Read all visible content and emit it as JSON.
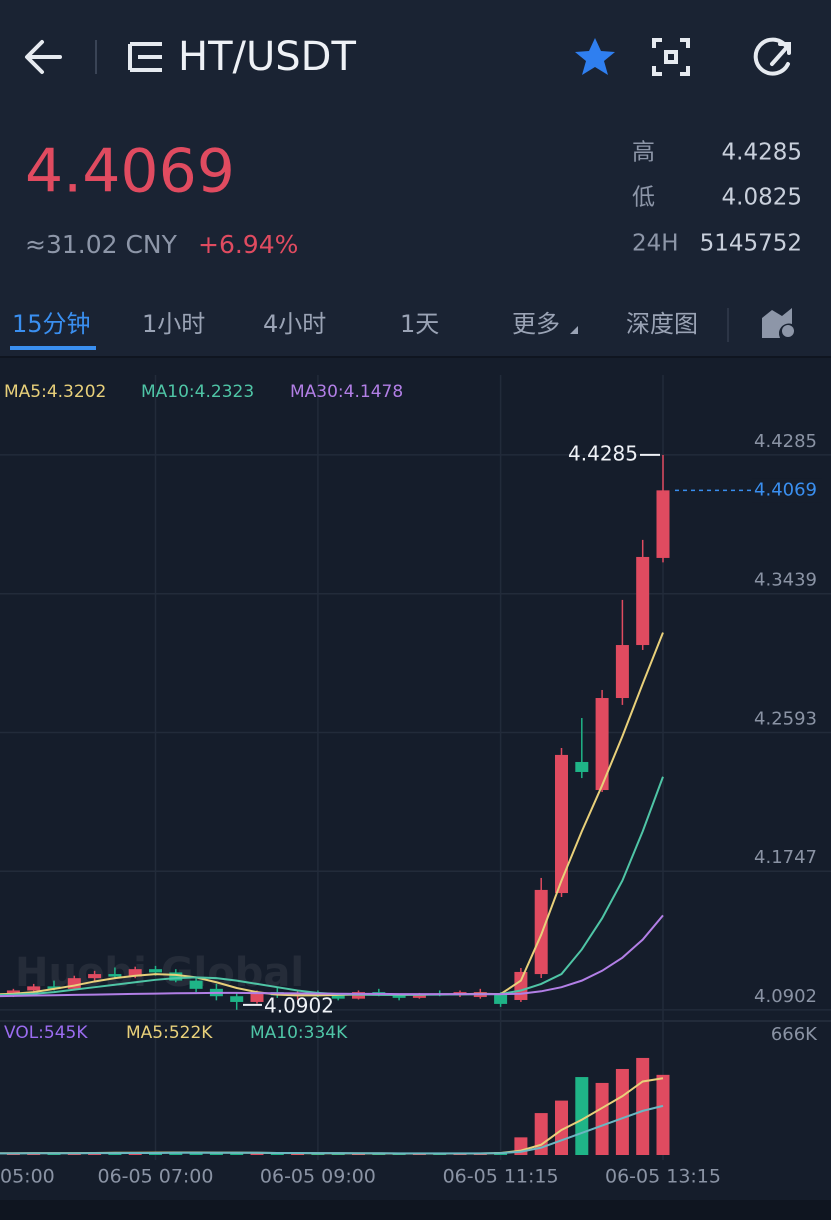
{
  "header": {
    "title": "HT/USDT"
  },
  "ticker": {
    "price": "4.4069",
    "cny": "≈31.02 CNY",
    "change": "+6.94%",
    "stats": [
      {
        "label": "高",
        "value": "4.4285"
      },
      {
        "label": "低",
        "value": "4.0825"
      },
      {
        "label": "24H",
        "value": "5145752"
      }
    ]
  },
  "tabs": [
    "15分钟",
    "1小时",
    "4小时",
    "1天",
    "更多",
    "深度图"
  ],
  "chart_data": {
    "type": "candlestick",
    "watermark": "Huobi Global",
    "legend": [
      "MA5:4.3202",
      "MA10:4.2323",
      "MA30:4.1478"
    ],
    "categories": [
      "05:00",
      null,
      null,
      null,
      null,
      null,
      null,
      null,
      "06-05 07:00",
      null,
      null,
      null,
      null,
      null,
      null,
      null,
      "06-05 09:00",
      null,
      null,
      null,
      null,
      null,
      null,
      null,
      null,
      "06-05 11:15",
      null,
      null,
      null,
      null,
      null,
      null,
      null,
      "06-05 13:15"
    ],
    "ohlc": [
      [
        4.0975,
        4.1002,
        4.096,
        4.099
      ],
      [
        4.099,
        4.103,
        4.098,
        4.102
      ],
      [
        4.102,
        4.106,
        4.1005,
        4.1045
      ],
      [
        4.1045,
        4.108,
        4.102,
        4.103
      ],
      [
        4.103,
        4.111,
        4.1025,
        4.1095
      ],
      [
        4.1095,
        4.114,
        4.108,
        4.112
      ],
      [
        4.112,
        4.116,
        4.109,
        4.1105
      ],
      [
        4.1105,
        4.1165,
        4.1095,
        4.115
      ],
      [
        4.115,
        4.117,
        4.111,
        4.113
      ],
      [
        4.113,
        4.115,
        4.107,
        4.108
      ],
      [
        4.108,
        4.11,
        4.101,
        4.103
      ],
      [
        4.103,
        4.106,
        4.096,
        4.0985
      ],
      [
        4.0985,
        4.101,
        4.0902,
        4.095
      ],
      [
        4.095,
        4.102,
        4.094,
        4.101
      ],
      [
        4.101,
        4.104,
        4.0975,
        4.099
      ],
      [
        4.099,
        4.1015,
        4.0965,
        4.1005
      ],
      [
        4.1005,
        4.102,
        4.098,
        4.099
      ],
      [
        4.099,
        4.1,
        4.096,
        4.097
      ],
      [
        4.097,
        4.102,
        4.0965,
        4.101
      ],
      [
        4.101,
        4.103,
        4.0985,
        4.0995
      ],
      [
        4.0995,
        4.1,
        4.096,
        4.0975
      ],
      [
        4.0975,
        4.1005,
        4.097,
        4.1
      ],
      [
        4.1,
        4.102,
        4.0985,
        4.0995
      ],
      [
        4.0995,
        4.102,
        4.098,
        4.101
      ],
      [
        4.098,
        4.103,
        4.097,
        4.101
      ],
      [
        4.1,
        4.101,
        4.092,
        4.0938
      ],
      [
        4.0962,
        4.1157,
        4.095,
        4.1133
      ],
      [
        4.112,
        4.1706,
        4.1096,
        4.1633
      ],
      [
        4.1614,
        4.2498,
        4.159,
        4.2456
      ],
      [
        4.2413,
        4.2681,
        4.2315,
        4.2352
      ],
      [
        4.2242,
        4.2852,
        4.223,
        4.2803
      ],
      [
        4.2803,
        4.3401,
        4.2761,
        4.3126
      ],
      [
        4.3126,
        4.3767,
        4.3096,
        4.3663
      ],
      [
        4.3657,
        4.4285,
        4.363,
        4.4069
      ]
    ],
    "colors": {
      "up": "#e04b60",
      "down": "#1fb487"
    },
    "ma": [
      {
        "color": "#e8d07a",
        "values": [
          4.0995,
          4.1,
          4.101,
          4.103,
          4.105,
          4.1075,
          4.1095,
          4.111,
          4.112,
          4.1115,
          4.11,
          4.107,
          4.1035,
          4.101,
          4.0995,
          4.099,
          4.099,
          4.0993,
          4.0995,
          4.0995,
          4.0993,
          4.0995,
          4.0996,
          4.0997,
          4.1,
          4.0998,
          4.108,
          4.136,
          4.169,
          4.199,
          4.227,
          4.257,
          4.289,
          4.3202
        ]
      },
      {
        "color": "#4fc5a6",
        "values": [
          4.099,
          4.0995,
          4.1,
          4.101,
          4.1025,
          4.104,
          4.1055,
          4.107,
          4.1085,
          4.1095,
          4.11,
          4.1095,
          4.108,
          4.106,
          4.104,
          4.102,
          4.1005,
          4.0998,
          4.0995,
          4.0993,
          4.0993,
          4.0994,
          4.0995,
          4.0996,
          4.0997,
          4.0998,
          4.102,
          4.106,
          4.112,
          4.127,
          4.146,
          4.169,
          4.199,
          4.2323
        ]
      },
      {
        "color": "#b27fe6",
        "values": [
          4.0985,
          4.0987,
          4.0989,
          4.0991,
          4.0993,
          4.0995,
          4.0997,
          4.0999,
          4.1001,
          4.1003,
          4.1004,
          4.1005,
          4.1005,
          4.1004,
          4.1003,
          4.1002,
          4.1001,
          4.1,
          4.0999,
          4.0999,
          4.0998,
          4.0998,
          4.0998,
          4.0998,
          4.0998,
          4.0998,
          4.1,
          4.1015,
          4.104,
          4.108,
          4.114,
          4.122,
          4.133,
          4.1478
        ]
      }
    ],
    "ylim": [
      4.084,
      4.4376
    ],
    "yticks": [
      4.4285,
      4.3439,
      4.2593,
      4.1747,
      4.0902
    ],
    "grid": true,
    "last_price": 4.4069,
    "high_label": 4.4285,
    "low_label": 4.0902,
    "volume": {
      "legend": [
        "VOL:545K",
        "MA5:522K",
        "MA10:334K"
      ],
      "legend_colors": [
        "#9b6cf0",
        "#e8d07a",
        "#4fc5a6"
      ],
      "values": [
        10,
        12,
        14,
        12,
        16,
        18,
        15,
        14,
        20,
        17,
        15,
        13,
        18,
        14,
        12,
        11,
        10,
        12,
        11,
        10,
        9,
        10,
        11,
        10,
        12,
        20,
        120,
        285,
        370,
        530,
        490,
        585,
        660,
        545
      ],
      "ylim": [
        0,
        782
      ],
      "yticks": [
        {
          "value": 666,
          "label": "666K"
        }
      ],
      "ma": [
        {
          "color": "#e8d07a",
          "values": [
            12,
            12,
            13,
            13,
            13,
            14,
            15,
            15,
            16,
            17,
            17,
            16,
            16,
            15,
            14,
            13,
            12,
            12,
            11,
            11,
            10,
            10,
            10,
            10,
            10,
            14,
            30,
            70,
            170,
            240,
            320,
            400,
            500,
            522
          ]
        },
        {
          "color": "#6bb7c2",
          "values": [
            11,
            11,
            12,
            12,
            12,
            13,
            13,
            14,
            14,
            15,
            15,
            15,
            15,
            15,
            14,
            14,
            13,
            13,
            12,
            12,
            11,
            11,
            11,
            11,
            11,
            13,
            22,
            50,
            100,
            150,
            200,
            250,
            300,
            334
          ]
        }
      ]
    }
  }
}
